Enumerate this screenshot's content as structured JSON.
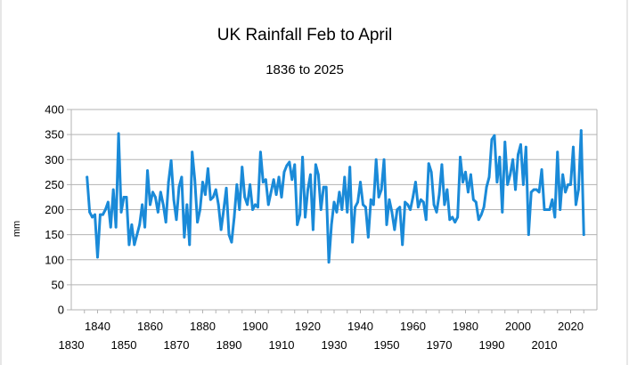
{
  "chart_data": {
    "type": "line",
    "title": "UK Rainfall Feb to April",
    "subtitle": "1836 to 2025",
    "xlabel": "",
    "ylabel": "mm",
    "xlim": [
      1830,
      2030
    ],
    "ylim": [
      0,
      400
    ],
    "y_ticks": [
      "0",
      "50",
      "100",
      "150",
      "200",
      "250",
      "300",
      "350",
      "400"
    ],
    "x_ticks_upper": [
      "1840",
      "1860",
      "1880",
      "1900",
      "1920",
      "1940",
      "1960",
      "1980",
      "2000",
      "2020"
    ],
    "x_ticks_lower": [
      "1830",
      "1850",
      "1870",
      "1890",
      "1910",
      "1930",
      "1950",
      "1970",
      "1990",
      "2010"
    ],
    "grid": true,
    "legend": "none",
    "colors": {
      "series": "#1a8ad8",
      "grid": "#b3b3b3"
    },
    "series": [
      {
        "x": [
          1836,
          1837,
          1838,
          1839,
          1840,
          1841,
          1842,
          1843,
          1844,
          1845,
          1846,
          1847,
          1848,
          1849,
          1850,
          1851,
          1852,
          1853,
          1854,
          1855,
          1856,
          1857,
          1858,
          1859,
          1860,
          1861,
          1862,
          1863,
          1864,
          1865,
          1866,
          1867,
          1868,
          1869,
          1870,
          1871,
          1872,
          1873,
          1874,
          1875,
          1876,
          1877,
          1878,
          1879,
          1880,
          1881,
          1882,
          1883,
          1884,
          1885,
          1886,
          1887,
          1888,
          1889,
          1890,
          1891,
          1892,
          1893,
          1894,
          1895,
          1896,
          1897,
          1898,
          1899,
          1900,
          1901,
          1902,
          1903,
          1904,
          1905,
          1906,
          1907,
          1908,
          1909,
          1910,
          1911,
          1912,
          1913,
          1914,
          1915,
          1916,
          1917,
          1918,
          1919,
          1920,
          1921,
          1922,
          1923,
          1924,
          1925,
          1926,
          1927,
          1928,
          1929,
          1930,
          1931,
          1932,
          1933,
          1934,
          1935,
          1936,
          1937,
          1938,
          1939,
          1940,
          1941,
          1942,
          1943,
          1944,
          1945,
          1946,
          1947,
          1948,
          1949,
          1950,
          1951,
          1952,
          1953,
          1954,
          1955,
          1956,
          1957,
          1958,
          1959,
          1960,
          1961,
          1962,
          1963,
          1964,
          1965,
          1966,
          1967,
          1968,
          1969,
          1970,
          1971,
          1972,
          1973,
          1974,
          1975,
          1976,
          1977,
          1978,
          1979,
          1980,
          1981,
          1982,
          1983,
          1984,
          1985,
          1986,
          1987,
          1988,
          1989,
          1990,
          1991,
          1992,
          1993,
          1994,
          1995,
          1996,
          1997,
          1998,
          1999,
          2000,
          2001,
          2002,
          2003,
          2004,
          2005,
          2006,
          2007,
          2008,
          2009,
          2010,
          2011,
          2012,
          2013,
          2014,
          2015,
          2016,
          2017,
          2018,
          2019,
          2020,
          2021,
          2022,
          2023,
          2024,
          2025
        ],
        "values": [
          265,
          195,
          185,
          190,
          105,
          190,
          190,
          200,
          215,
          165,
          240,
          165,
          352,
          195,
          225,
          225,
          130,
          170,
          130,
          150,
          170,
          210,
          165,
          278,
          210,
          235,
          225,
          195,
          235,
          210,
          175,
          255,
          298,
          220,
          180,
          245,
          265,
          145,
          210,
          130,
          315,
          260,
          175,
          200,
          255,
          230,
          282,
          220,
          225,
          240,
          210,
          160,
          200,
          243,
          150,
          135,
          185,
          250,
          200,
          285,
          225,
          210,
          250,
          200,
          210,
          205,
          315,
          255,
          260,
          210,
          235,
          260,
          230,
          265,
          225,
          275,
          288,
          295,
          260,
          290,
          170,
          190,
          305,
          185,
          240,
          270,
          160,
          290,
          270,
          200,
          245,
          245,
          95,
          170,
          215,
          195,
          235,
          200,
          265,
          195,
          285,
          135,
          205,
          215,
          255,
          210,
          205,
          145,
          220,
          210,
          300,
          225,
          240,
          300,
          170,
          220,
          195,
          160,
          200,
          205,
          130,
          215,
          210,
          200,
          225,
          255,
          205,
          220,
          215,
          180,
          292,
          275,
          210,
          195,
          230,
          290,
          210,
          240,
          180,
          185,
          175,
          185,
          305,
          255,
          275,
          235,
          270,
          220,
          215,
          180,
          190,
          205,
          245,
          265,
          340,
          348,
          255,
          305,
          195,
          335,
          250,
          270,
          300,
          240,
          310,
          330,
          250,
          325,
          150,
          235,
          240,
          240,
          235,
          280,
          200,
          200,
          200,
          220,
          185,
          315,
          200,
          270,
          235,
          250,
          250,
          325,
          210,
          240,
          358,
          150
        ]
      }
    ]
  }
}
